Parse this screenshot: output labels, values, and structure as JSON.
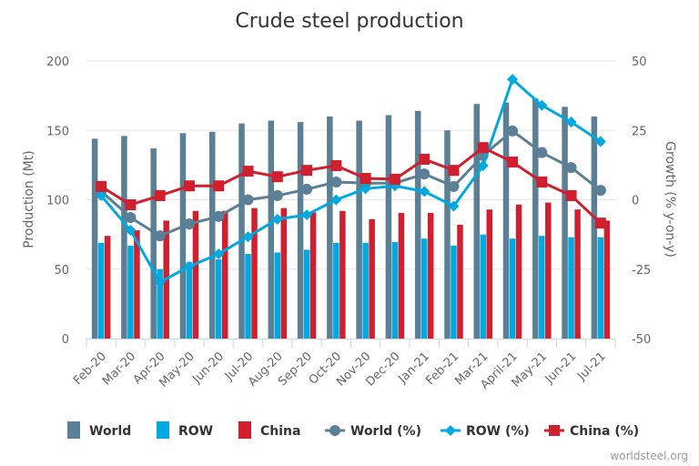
{
  "chart_data": {
    "type": "bar+line",
    "title": "Crude steel production",
    "categories": [
      "Feb-20",
      "Mar-20",
      "Apr-20",
      "May-20",
      "Jun-20",
      "Jul-20",
      "Aug-20",
      "Sep-20",
      "Oct-20",
      "Nov-20",
      "Dec-20",
      "Jan-21",
      "Feb-21",
      "Mar-21",
      "April-21",
      "May-21",
      "Jun-21",
      "Jul-21"
    ],
    "ylabel": "Production (Mt)",
    "y2label": "Growth (% y-on-y)",
    "ylim": [
      0,
      200
    ],
    "yticks": [
      0,
      50,
      100,
      150,
      200
    ],
    "y2lim": [
      -50,
      50
    ],
    "y2ticks": [
      -50,
      -25,
      0,
      25,
      50
    ],
    "grid": true,
    "legend_position": "bottom",
    "series": [
      {
        "name": "World",
        "kind": "bar",
        "axis": "left",
        "color": "#5b7f95",
        "values": [
          144,
          146,
          137,
          148,
          149,
          155,
          157,
          156,
          160,
          157,
          161,
          164,
          150,
          169,
          170,
          173,
          167,
          160
        ]
      },
      {
        "name": "ROW",
        "kind": "bar",
        "axis": "left",
        "color": "#00a9e0",
        "values": [
          69,
          67,
          50,
          55,
          57,
          61,
          62,
          64,
          69,
          69,
          69.5,
          72,
          67,
          75,
          72,
          74,
          73,
          73
        ]
      },
      {
        "name": "China",
        "kind": "bar",
        "axis": "left",
        "color": "#d01f2e",
        "values": [
          74,
          78,
          85,
          92,
          92,
          94,
          94,
          91,
          92,
          86,
          90.5,
          90.5,
          82,
          93,
          96.5,
          98,
          93,
          85
        ]
      },
      {
        "name": "World (%)",
        "kind": "line",
        "marker": "circle",
        "axis": "right",
        "color": "#5b7f95",
        "values": [
          3.1,
          -6.4,
          -13,
          -8.7,
          -6,
          0,
          1.5,
          3.8,
          6.4,
          6,
          6,
          9.3,
          4.8,
          16,
          24.8,
          17,
          11.6,
          3.4
        ]
      },
      {
        "name": "ROW (%)",
        "kind": "line",
        "marker": "diamond",
        "axis": "right",
        "color": "#00a9e0",
        "values": [
          1.5,
          -11,
          -29.7,
          -24,
          -19.5,
          -13.3,
          -7,
          -5.4,
          0,
          4,
          5,
          3,
          -2.3,
          12.3,
          43.4,
          34,
          28,
          21
        ]
      },
      {
        "name": "China (%)",
        "kind": "line",
        "marker": "square",
        "axis": "right",
        "color": "#d01f2e",
        "values": [
          4.8,
          -1.8,
          1.5,
          5,
          5,
          10.3,
          8.3,
          10.6,
          12.3,
          7.7,
          7.4,
          14.6,
          10.6,
          18.8,
          13.6,
          6.4,
          1.5,
          -8.4
        ]
      }
    ]
  },
  "credit": "worldsteel.org"
}
